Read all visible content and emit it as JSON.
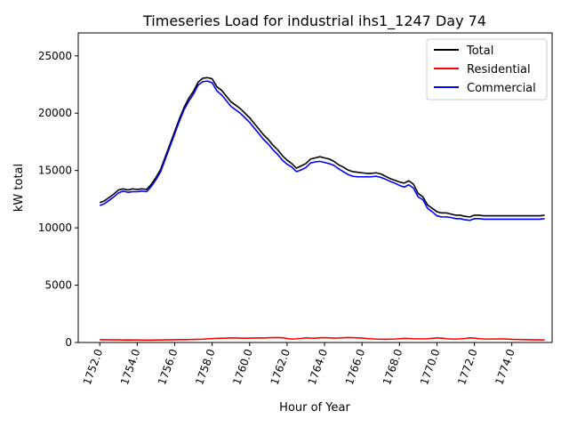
{
  "chart_data": {
    "type": "line",
    "title": "Timeseries Load for industrial ihs1_1247  Day 74",
    "xlabel": "Hour of Year",
    "ylabel": "kW total",
    "xlim": [
      1750.85,
      1776.15
    ],
    "ylim": [
      0,
      27000
    ],
    "x_ticks": [
      1752.0,
      1754.0,
      1756.0,
      1758.0,
      1760.0,
      1762.0,
      1764.0,
      1766.0,
      1768.0,
      1770.0,
      1772.0,
      1774.0
    ],
    "x_tick_labels": [
      "1752.0",
      "1754.0",
      "1756.0",
      "1758.0",
      "1760.0",
      "1762.0",
      "1764.0",
      "1766.0",
      "1768.0",
      "1770.0",
      "1772.0",
      "1774.0"
    ],
    "y_ticks": [
      0,
      5000,
      10000,
      15000,
      20000,
      25000
    ],
    "y_tick_labels": [
      "0",
      "5000",
      "10000",
      "15000",
      "20000",
      "25000"
    ],
    "legend_position": "top-right",
    "x": [
      1752.0,
      1752.25,
      1752.5,
      1752.75,
      1753.0,
      1753.25,
      1753.5,
      1753.75,
      1754.0,
      1754.25,
      1754.5,
      1754.75,
      1755.0,
      1755.25,
      1755.5,
      1755.75,
      1756.0,
      1756.25,
      1756.5,
      1756.75,
      1757.0,
      1757.25,
      1757.5,
      1757.75,
      1758.0,
      1758.25,
      1758.5,
      1758.75,
      1759.0,
      1759.25,
      1759.5,
      1759.75,
      1760.0,
      1760.25,
      1760.5,
      1760.75,
      1761.0,
      1761.25,
      1761.5,
      1761.75,
      1762.0,
      1762.25,
      1762.5,
      1762.75,
      1763.0,
      1763.25,
      1763.5,
      1763.75,
      1764.0,
      1764.25,
      1764.5,
      1764.75,
      1765.0,
      1765.25,
      1765.5,
      1765.75,
      1766.0,
      1766.25,
      1766.5,
      1766.75,
      1767.0,
      1767.25,
      1767.5,
      1767.75,
      1768.0,
      1768.25,
      1768.5,
      1768.75,
      1769.0,
      1769.25,
      1769.5,
      1769.75,
      1770.0,
      1770.25,
      1770.5,
      1770.75,
      1771.0,
      1771.25,
      1771.5,
      1771.75,
      1772.0,
      1772.25,
      1772.5,
      1772.75,
      1773.0,
      1773.25,
      1773.5,
      1773.75,
      1774.0,
      1774.25,
      1774.5,
      1774.75,
      1775.0,
      1775.25,
      1775.5,
      1775.75
    ],
    "series": [
      {
        "name": "Total",
        "color": "#000000",
        "values": [
          12200,
          12350,
          12650,
          12950,
          13300,
          13400,
          13300,
          13400,
          13350,
          13400,
          13350,
          13800,
          14400,
          15100,
          16200,
          17300,
          18400,
          19500,
          20500,
          21300,
          21900,
          22700,
          23050,
          23100,
          23000,
          22300,
          22000,
          21500,
          21000,
          20700,
          20400,
          20000,
          19600,
          19100,
          18600,
          18100,
          17700,
          17200,
          16800,
          16300,
          15900,
          15600,
          15200,
          15400,
          15600,
          16000,
          16100,
          16200,
          16100,
          16000,
          15800,
          15500,
          15300,
          15050,
          14900,
          14850,
          14800,
          14750,
          14750,
          14800,
          14700,
          14500,
          14300,
          14150,
          14000,
          13900,
          14100,
          13800,
          13000,
          12700,
          12000,
          11700,
          11400,
          11300,
          11300,
          11200,
          11100,
          11100,
          11000,
          10950,
          11100,
          11100,
          11050,
          11050,
          11050,
          11050,
          11050,
          11050,
          11050,
          11050,
          11050,
          11050,
          11050,
          11050,
          11050,
          11100
        ]
      },
      {
        "name": "Residential",
        "color": "#ff0000",
        "values": [
          250,
          240,
          240,
          230,
          230,
          220,
          225,
          220,
          215,
          210,
          210,
          210,
          215,
          220,
          225,
          230,
          240,
          245,
          250,
          260,
          265,
          275,
          290,
          320,
          340,
          360,
          370,
          380,
          400,
          390,
          380,
          370,
          380,
          390,
          400,
          395,
          410,
          420,
          430,
          410,
          350,
          300,
          320,
          360,
          400,
          380,
          370,
          410,
          420,
          400,
          380,
          390,
          410,
          430,
          420,
          400,
          380,
          350,
          320,
          300,
          290,
          280,
          290,
          300,
          330,
          360,
          350,
          320,
          320,
          310,
          330,
          360,
          400,
          380,
          330,
          300,
          300,
          320,
          350,
          400,
          380,
          330,
          310,
          300,
          300,
          310,
          320,
          300,
          280,
          270,
          260,
          250,
          240,
          230,
          230,
          230
        ]
      },
      {
        "name": "Commercial",
        "color": "#0000ff",
        "values": [
          11950,
          12100,
          12400,
          12700,
          13050,
          13200,
          13100,
          13150,
          13150,
          13200,
          13150,
          13600,
          14200,
          14900,
          16000,
          17100,
          18200,
          19300,
          20300,
          21050,
          21650,
          22450,
          22750,
          22800,
          22650,
          21950,
          21600,
          21100,
          20600,
          20300,
          20000,
          19600,
          19200,
          18700,
          18200,
          17700,
          17300,
          16800,
          16400,
          15900,
          15550,
          15300,
          14900,
          15050,
          15250,
          15650,
          15750,
          15800,
          15700,
          15600,
          15450,
          15150,
          14900,
          14650,
          14500,
          14450,
          14450,
          14450,
          14450,
          14500,
          14400,
          14250,
          14050,
          13900,
          13700,
          13550,
          13750,
          13450,
          12700,
          12450,
          11700,
          11400,
          11050,
          10950,
          10950,
          10900,
          10800,
          10800,
          10700,
          10650,
          10800,
          10800,
          10750,
          10750,
          10750,
          10750,
          10750,
          10750,
          10750,
          10750,
          10750,
          10750,
          10750,
          10750,
          10750,
          10800
        ]
      }
    ]
  }
}
